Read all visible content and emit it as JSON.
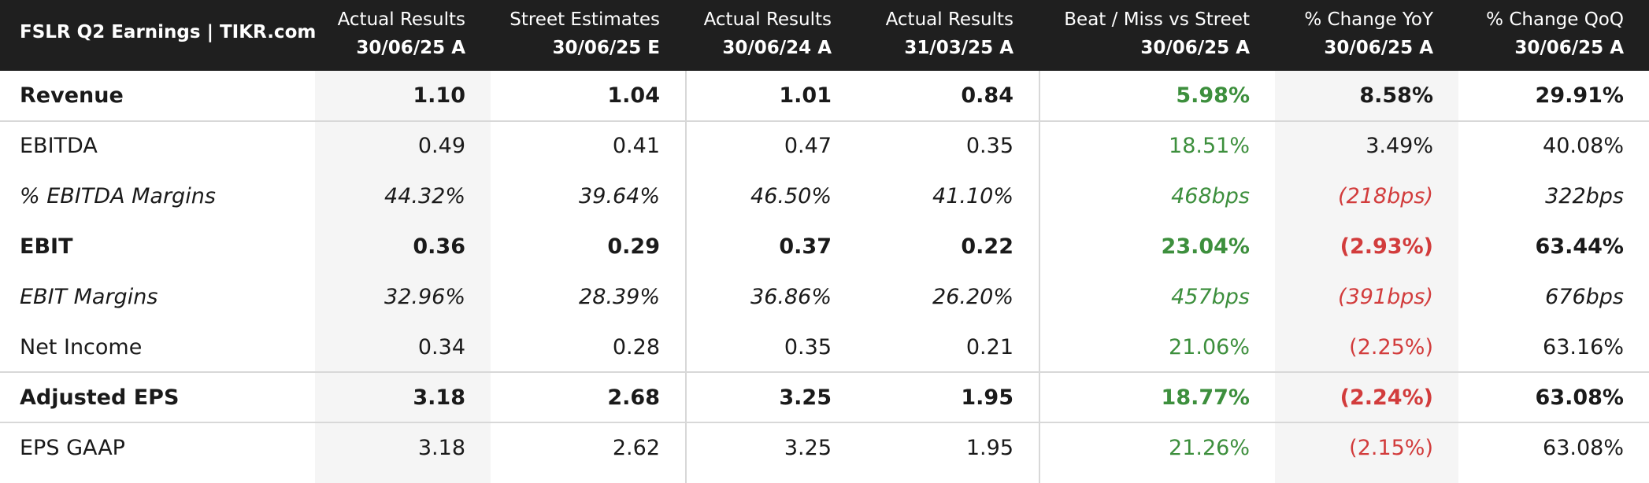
{
  "header": {
    "title": "FSLR Q2 Earnings | TIKR.com"
  },
  "columns": [
    {
      "line1": "Actual Results",
      "line2": "30/06/25 A"
    },
    {
      "line1": "Street Estimates",
      "line2": "30/06/25 E"
    },
    {
      "line1": "Actual Results",
      "line2": "30/06/24 A"
    },
    {
      "line1": "Actual Results",
      "line2": "31/03/25 A"
    },
    {
      "line1": "Beat / Miss vs Street",
      "line2": "30/06/25 A"
    },
    {
      "line1": "% Change YoY",
      "line2": "30/06/25 A"
    },
    {
      "line1": "% Change QoQ",
      "line2": "30/06/25 A"
    }
  ],
  "rows": [
    {
      "label": "Revenue",
      "style": "bold",
      "cells": [
        "1.10",
        "1.04",
        "1.01",
        "0.84",
        "5.98%",
        "8.58%",
        "29.91%"
      ]
    },
    {
      "label": "EBITDA",
      "style": "normal",
      "cells": [
        "0.49",
        "0.41",
        "0.47",
        "0.35",
        "18.51%",
        "3.49%",
        "40.08%"
      ]
    },
    {
      "label": "% EBITDA Margins",
      "style": "italic",
      "cells": [
        "44.32%",
        "39.64%",
        "46.50%",
        "41.10%",
        "468bps",
        "(218bps)",
        "322bps"
      ]
    },
    {
      "label": "EBIT",
      "style": "bold",
      "cells": [
        "0.36",
        "0.29",
        "0.37",
        "0.22",
        "23.04%",
        "(2.93%)",
        "63.44%"
      ]
    },
    {
      "label": "EBIT Margins",
      "style": "italic",
      "cells": [
        "32.96%",
        "28.39%",
        "36.86%",
        "26.20%",
        "457bps",
        "(391bps)",
        "676bps"
      ]
    },
    {
      "label": "Net Income",
      "style": "normal",
      "cells": [
        "0.34",
        "0.28",
        "0.35",
        "0.21",
        "21.06%",
        "(2.25%)",
        "63.16%"
      ]
    },
    {
      "label": "Adjusted EPS",
      "style": "bold",
      "cells": [
        "3.18",
        "2.68",
        "3.25",
        "1.95",
        "18.77%",
        "(2.24%)",
        "63.08%"
      ]
    },
    {
      "label": "EPS GAAP",
      "style": "normal",
      "cells": [
        "3.18",
        "2.62",
        "3.25",
        "1.95",
        "21.26%",
        "(2.15%)",
        "63.08%"
      ]
    }
  ]
}
